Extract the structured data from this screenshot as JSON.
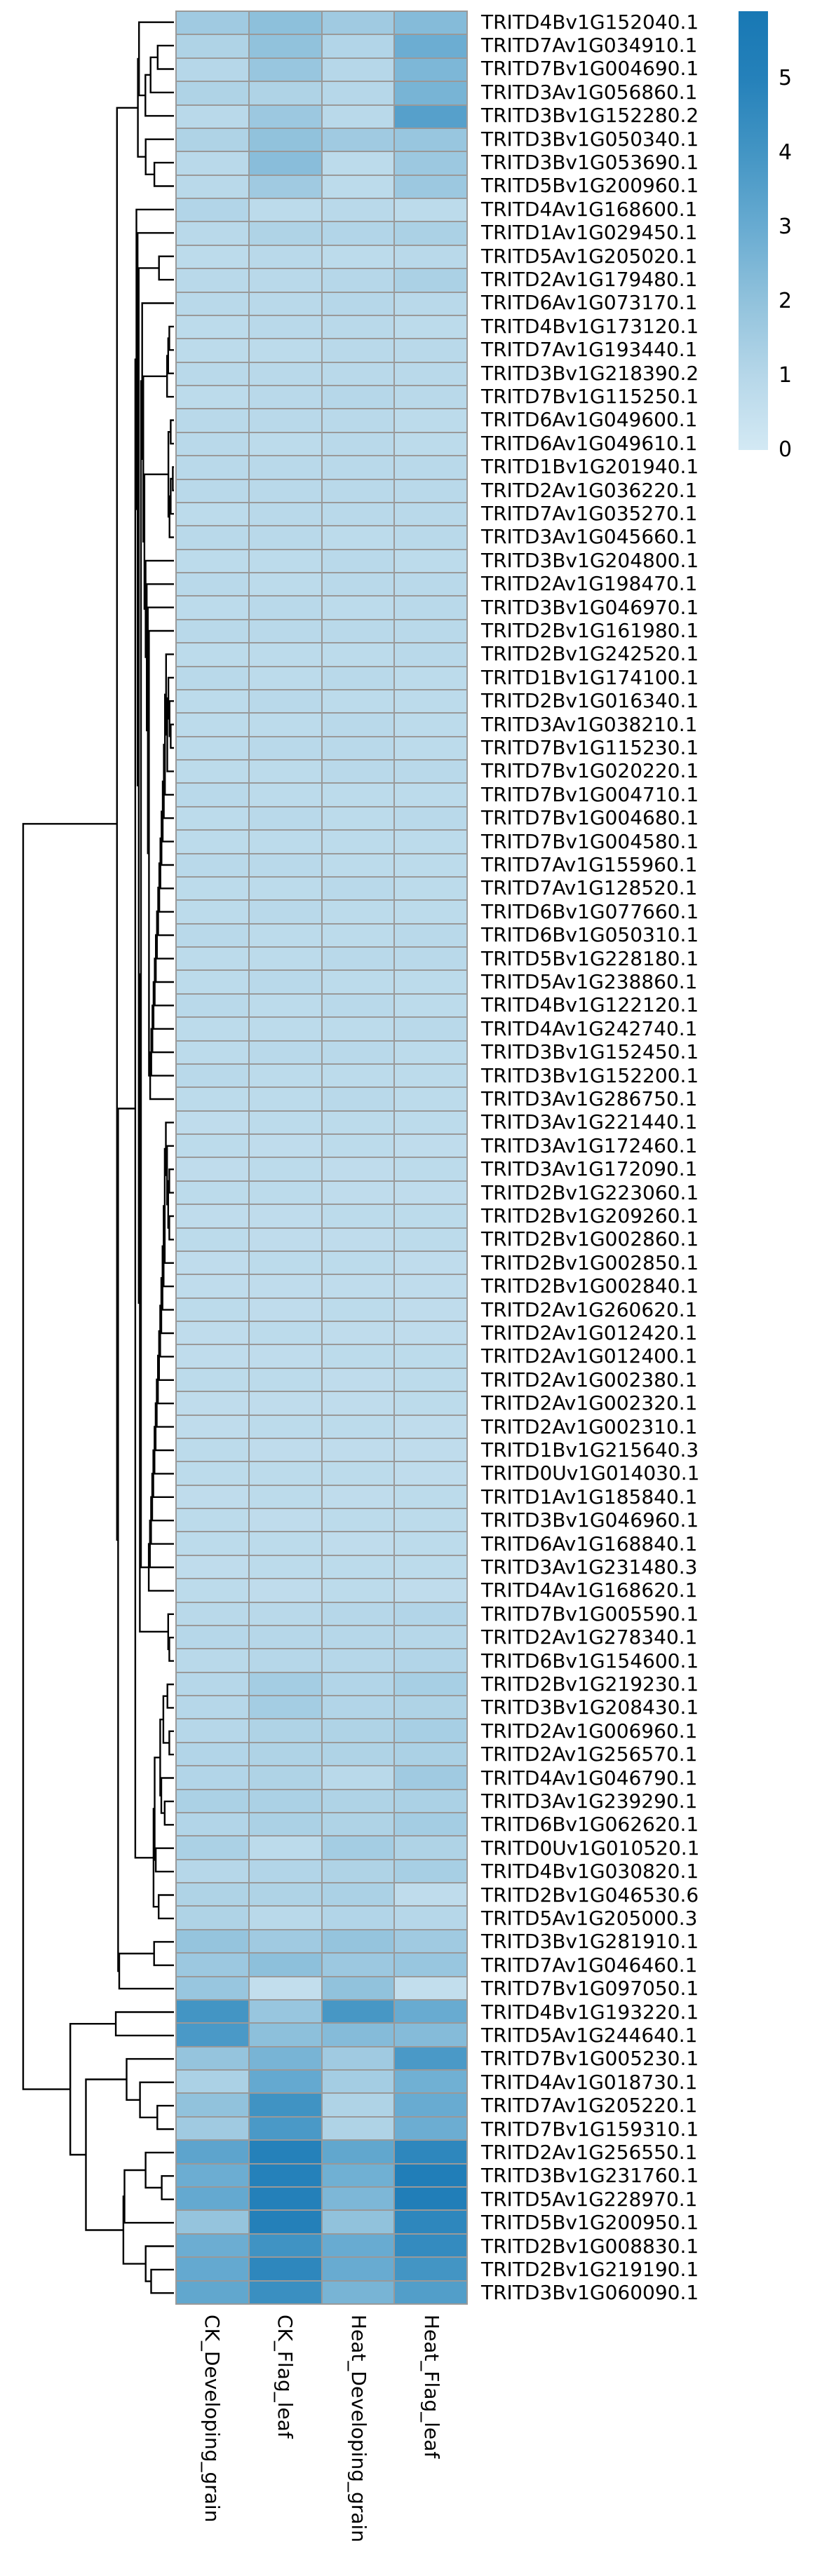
{
  "chart_data": {
    "type": "heatmap",
    "title": "",
    "xlabel": "",
    "ylabel": "",
    "legend_position": "top-right",
    "row_dendrogram_side": "left",
    "grid": "cell-borders-gray",
    "columns": [
      "CK_Developing_grain",
      "CK_Flag_leaf",
      "Heat_Developing_grain",
      "Heat_Flag_leaf"
    ],
    "rows": [
      "TRITD4Bv1G152040.1",
      "TRITD7Av1G034910.1",
      "TRITD7Bv1G004690.1",
      "TRITD3Av1G056860.1",
      "TRITD3Bv1G152280.2",
      "TRITD3Bv1G050340.1",
      "TRITD3Bv1G053690.1",
      "TRITD5Bv1G200960.1",
      "TRITD4Av1G168600.1",
      "TRITD1Av1G029450.1",
      "TRITD5Av1G205020.1",
      "TRITD2Av1G179480.1",
      "TRITD6Av1G073170.1",
      "TRITD4Bv1G173120.1",
      "TRITD7Av1G193440.1",
      "TRITD3Bv1G218390.2",
      "TRITD7Bv1G115250.1",
      "TRITD6Av1G049600.1",
      "TRITD6Av1G049610.1",
      "TRITD1Bv1G201940.1",
      "TRITD2Av1G036220.1",
      "TRITD7Av1G035270.1",
      "TRITD3Av1G045660.1",
      "TRITD3Bv1G204800.1",
      "TRITD2Av1G198470.1",
      "TRITD3Bv1G046970.1",
      "TRITD2Bv1G161980.1",
      "TRITD2Bv1G242520.1",
      "TRITD1Bv1G174100.1",
      "TRITD2Bv1G016340.1",
      "TRITD3Av1G038210.1",
      "TRITD7Bv1G115230.1",
      "TRITD7Bv1G020220.1",
      "TRITD7Bv1G004710.1",
      "TRITD7Bv1G004680.1",
      "TRITD7Bv1G004580.1",
      "TRITD7Av1G155960.1",
      "TRITD7Av1G128520.1",
      "TRITD6Bv1G077660.1",
      "TRITD6Bv1G050310.1",
      "TRITD5Bv1G228180.1",
      "TRITD5Av1G238860.1",
      "TRITD4Bv1G122120.1",
      "TRITD4Av1G242740.1",
      "TRITD3Bv1G152450.1",
      "TRITD3Bv1G152200.1",
      "TRITD3Av1G286750.1",
      "TRITD3Av1G221440.1",
      "TRITD3Av1G172460.1",
      "TRITD3Av1G172090.1",
      "TRITD2Bv1G223060.1",
      "TRITD2Bv1G209260.1",
      "TRITD2Bv1G002860.1",
      "TRITD2Bv1G002850.1",
      "TRITD2Bv1G002840.1",
      "TRITD2Av1G260620.1",
      "TRITD2Av1G012420.1",
      "TRITD2Av1G012400.1",
      "TRITD2Av1G002380.1",
      "TRITD2Av1G002320.1",
      "TRITD2Av1G002310.1",
      "TRITD1Bv1G215640.3",
      "TRITD0Uv1G014030.1",
      "TRITD1Av1G185840.1",
      "TRITD3Bv1G046960.1",
      "TRITD6Av1G168840.1",
      "TRITD3Av1G231480.3",
      "TRITD4Av1G168620.1",
      "TRITD7Bv1G005590.1",
      "TRITD2Av1G278340.1",
      "TRITD6Bv1G154600.1",
      "TRITD2Bv1G219230.1",
      "TRITD3Bv1G208430.1",
      "TRITD2Av1G006960.1",
      "TRITD2Av1G256570.1",
      "TRITD4Av1G046790.1",
      "TRITD3Av1G239290.1",
      "TRITD6Bv1G062620.1",
      "TRITD0Uv1G010520.1",
      "TRITD4Bv1G030820.1",
      "TRITD2Bv1G046530.6",
      "TRITD5Av1G205000.3",
      "TRITD3Bv1G281910.1",
      "TRITD7Av1G046460.1",
      "TRITD7Bv1G097050.1",
      "TRITD4Bv1G193220.1",
      "TRITD5Av1G244640.1",
      "TRITD7Bv1G005230.1",
      "TRITD4Av1G018730.1",
      "TRITD7Av1G205220.1",
      "TRITD7Bv1G159310.1",
      "TRITD2Av1G256550.1",
      "TRITD3Bv1G231760.1",
      "TRITD5Av1G228970.1",
      "TRITD5Bv1G200950.1",
      "TRITD2Bv1G008830.1",
      "TRITD2Bv1G219190.1",
      "TRITD3Bv1G060090.1"
    ],
    "values": [
      [
        1.6,
        2.1,
        1.6,
        2.3
      ],
      [
        1.2,
        2.0,
        1.1,
        2.9
      ],
      [
        1.0,
        1.8,
        1.0,
        2.5
      ],
      [
        1.2,
        1.2,
        1.0,
        2.6
      ],
      [
        0.9,
        1.7,
        0.9,
        3.5
      ],
      [
        1.2,
        2.0,
        1.6,
        1.8
      ],
      [
        0.9,
        2.2,
        0.8,
        1.7
      ],
      [
        0.9,
        1.6,
        0.8,
        1.7
      ],
      [
        1.1,
        0.8,
        0.9,
        0.8
      ],
      [
        0.9,
        1.2,
        1.1,
        1.3
      ],
      [
        0.8,
        0.9,
        0.8,
        0.9
      ],
      [
        0.9,
        0.9,
        1.0,
        1.3
      ],
      [
        0.9,
        0.9,
        1.0,
        0.9
      ],
      [
        0.8,
        0.9,
        0.9,
        0.8
      ],
      [
        0.8,
        0.8,
        0.9,
        0.9
      ],
      [
        0.9,
        0.9,
        0.9,
        0.9
      ],
      [
        0.8,
        0.9,
        1.0,
        0.9
      ],
      [
        0.9,
        0.9,
        0.9,
        0.8
      ],
      [
        0.9,
        0.8,
        0.9,
        0.8
      ],
      [
        0.9,
        0.9,
        0.9,
        0.9
      ],
      [
        0.9,
        0.9,
        0.9,
        0.9
      ],
      [
        0.8,
        0.9,
        0.9,
        0.9
      ],
      [
        0.9,
        0.9,
        0.8,
        0.9
      ],
      [
        0.8,
        0.8,
        0.9,
        0.8
      ],
      [
        0.9,
        0.8,
        0.9,
        0.9
      ],
      [
        0.8,
        0.9,
        0.8,
        0.9
      ],
      [
        0.9,
        0.9,
        0.9,
        0.9
      ],
      [
        0.8,
        0.8,
        0.8,
        0.9
      ],
      [
        0.9,
        0.8,
        0.9,
        0.8
      ],
      [
        0.8,
        0.9,
        0.8,
        0.8
      ],
      [
        0.8,
        0.8,
        0.9,
        0.8
      ],
      [
        0.8,
        0.9,
        0.9,
        0.8
      ],
      [
        0.8,
        0.8,
        0.9,
        0.9
      ],
      [
        0.9,
        0.8,
        0.8,
        0.8
      ],
      [
        0.8,
        0.9,
        0.8,
        0.9
      ],
      [
        0.8,
        0.8,
        0.8,
        0.8
      ],
      [
        0.9,
        0.9,
        0.8,
        0.8
      ],
      [
        0.8,
        0.8,
        0.9,
        0.8
      ],
      [
        0.8,
        0.9,
        0.8,
        0.8
      ],
      [
        0.9,
        0.8,
        0.8,
        0.9
      ],
      [
        0.8,
        0.8,
        0.9,
        0.9
      ],
      [
        0.8,
        0.9,
        0.8,
        0.8
      ],
      [
        0.9,
        0.8,
        0.9,
        0.8
      ],
      [
        0.8,
        0.8,
        0.8,
        0.9
      ],
      [
        0.8,
        0.9,
        0.9,
        0.8
      ],
      [
        0.9,
        0.8,
        0.8,
        0.8
      ],
      [
        0.8,
        0.8,
        0.9,
        0.8
      ],
      [
        0.7,
        0.8,
        0.8,
        0.8
      ],
      [
        0.8,
        0.7,
        0.8,
        0.7
      ],
      [
        0.7,
        0.8,
        0.7,
        0.8
      ],
      [
        0.8,
        0.8,
        0.7,
        0.7
      ],
      [
        0.7,
        0.7,
        0.8,
        0.8
      ],
      [
        0.8,
        0.7,
        0.7,
        0.8
      ],
      [
        0.7,
        0.8,
        0.8,
        0.7
      ],
      [
        0.7,
        0.7,
        0.7,
        0.7
      ],
      [
        0.8,
        0.7,
        0.8,
        0.7
      ],
      [
        0.7,
        0.8,
        0.7,
        0.7
      ],
      [
        0.7,
        0.7,
        0.8,
        0.8
      ],
      [
        0.8,
        0.8,
        0.7,
        0.8
      ],
      [
        0.7,
        0.7,
        0.7,
        0.8
      ],
      [
        0.7,
        0.8,
        0.8,
        0.7
      ],
      [
        0.8,
        0.7,
        0.7,
        0.7
      ],
      [
        0.8,
        0.8,
        0.8,
        0.7
      ],
      [
        0.7,
        0.8,
        0.7,
        0.8
      ],
      [
        0.8,
        0.7,
        0.8,
        0.8
      ],
      [
        0.8,
        0.8,
        0.7,
        0.8
      ],
      [
        0.7,
        0.8,
        0.8,
        0.8
      ],
      [
        0.8,
        0.7,
        0.8,
        0.7
      ],
      [
        0.9,
        0.9,
        1.0,
        1.1
      ],
      [
        1.0,
        1.0,
        1.0,
        1.0
      ],
      [
        0.9,
        1.0,
        1.0,
        1.1
      ],
      [
        1.0,
        1.5,
        1.1,
        1.4
      ],
      [
        1.0,
        1.5,
        1.1,
        1.2
      ],
      [
        1.0,
        1.2,
        1.2,
        1.4
      ],
      [
        1.1,
        1.2,
        1.2,
        1.3
      ],
      [
        1.1,
        1.2,
        0.9,
        1.6
      ],
      [
        1.3,
        1.3,
        1.2,
        1.3
      ],
      [
        1.1,
        1.3,
        1.2,
        1.5
      ],
      [
        1.3,
        0.8,
        1.5,
        1.2
      ],
      [
        1.0,
        1.1,
        1.2,
        1.4
      ],
      [
        1.2,
        1.2,
        1.3,
        0.7
      ],
      [
        1.2,
        0.9,
        1.1,
        1.0
      ],
      [
        1.9,
        1.6,
        1.9,
        1.6
      ],
      [
        1.7,
        2.1,
        1.7,
        1.8
      ],
      [
        1.8,
        0.6,
        2.0,
        0.6
      ],
      [
        4.0,
        1.8,
        3.9,
        3.0
      ],
      [
        3.8,
        2.1,
        2.3,
        2.3
      ],
      [
        1.9,
        2.6,
        1.6,
        3.8
      ],
      [
        1.3,
        3.1,
        1.5,
        2.8
      ],
      [
        2.0,
        4.1,
        1.2,
        3.0
      ],
      [
        1.6,
        3.8,
        1.2,
        2.9
      ],
      [
        3.3,
        5.0,
        3.2,
        4.7
      ],
      [
        2.9,
        5.0,
        2.8,
        5.3
      ],
      [
        3.1,
        5.1,
        2.5,
        5.3
      ],
      [
        1.9,
        5.1,
        2.0,
        4.7
      ],
      [
        2.9,
        4.1,
        3.0,
        4.5
      ],
      [
        3.1,
        4.7,
        3.0,
        4.0
      ],
      [
        3.2,
        4.3,
        2.6,
        3.6
      ]
    ],
    "colorbar": {
      "min": 0,
      "max": 5.91,
      "tick_labels": [
        "5",
        "4",
        "3",
        "2",
        "1",
        "0"
      ],
      "tick_values": [
        5,
        4,
        3,
        2,
        1,
        0
      ],
      "gradient_stops": [
        [
          0,
          "#d3e9f4"
        ],
        [
          1,
          "#b6d7e9"
        ],
        [
          2,
          "#91c2dc"
        ],
        [
          3,
          "#68abd1"
        ],
        [
          4,
          "#4395c4"
        ],
        [
          5,
          "#2581ba"
        ],
        [
          5.91,
          "#1878b4"
        ]
      ]
    },
    "colors": {
      "cell_border": "#999999",
      "dendrogram_line": "#000000",
      "label_text": "#000000",
      "background": "#ffffff"
    }
  }
}
